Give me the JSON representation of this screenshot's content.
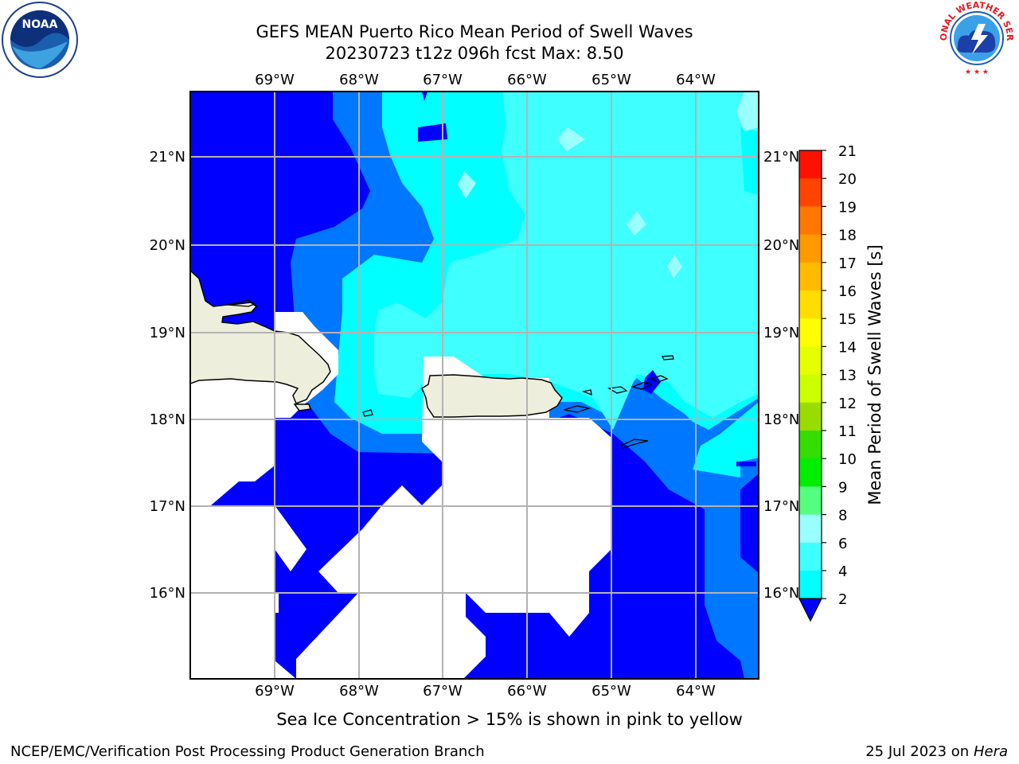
{
  "title": {
    "line1": "GEFS MEAN Puerto Rico Mean Period of Swell Waves",
    "line2": "20230723 t12z 096h fcst   Max: 8.50"
  },
  "subtitle": "Sea Ice Concentration > 15% is shown in pink to yellow",
  "footer": {
    "left": "NCEP/EMC/Verification Post Processing Product Generation Branch",
    "date": "25 Jul 2023 on ",
    "host": "Hera"
  },
  "logos": {
    "left": "NOAA",
    "right_ring": "NATIONAL WEATHER SERVICE"
  },
  "map": {
    "lon_labels": [
      "69°W",
      "68°W",
      "67°W",
      "66°W",
      "65°W",
      "64°W"
    ],
    "lat_labels": [
      "21°N",
      "20°N",
      "19°N",
      "18°N",
      "17°N",
      "16°N"
    ],
    "gridlines": true
  },
  "colorbar": {
    "label": "Mean Period of Swell Waves [s]",
    "ticks": [
      "2",
      "4",
      "6",
      "8",
      "9",
      "10",
      "11",
      "12",
      "13",
      "14",
      "15",
      "16",
      "17",
      "18",
      "19",
      "20",
      "21"
    ],
    "colors": [
      "#0000ff",
      "#0077ff",
      "#00ffff",
      "#3fffff",
      "#9affff",
      "#55ff80",
      "#00ee00",
      "#33dd00",
      "#99dd00",
      "#ccff00",
      "#e6ff00",
      "#ffff00",
      "#ffdd00",
      "#ffbb00",
      "#ff9900",
      "#ff7700",
      "#ff4400",
      "#ff1100"
    ],
    "extend": "min"
  }
}
